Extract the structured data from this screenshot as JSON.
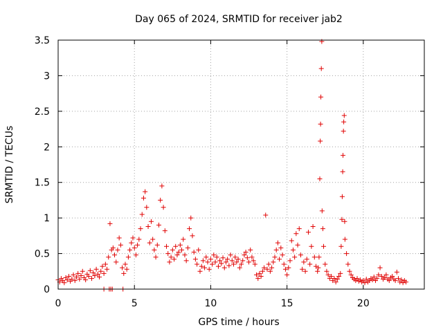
{
  "chart_data": {
    "type": "scatter",
    "title": "Day 065 of 2024, SRMTID for receiver jab2",
    "xlabel": "GPS time / hours",
    "ylabel": "SRMTID / TECUs",
    "xlim": [
      0,
      24
    ],
    "ylim": [
      0,
      3.5
    ],
    "xticks": [
      0,
      5,
      10,
      15,
      20
    ],
    "xtick_labels": [
      "0",
      "5",
      "10",
      "15",
      "20"
    ],
    "yticks": [
      0,
      0.5,
      1,
      1.5,
      2,
      2.5,
      3,
      3.5
    ],
    "ytick_labels": [
      "0",
      "0.5",
      "1",
      "1.5",
      "2",
      "2.5",
      "3",
      "3.5"
    ],
    "grid": true,
    "legend": "none",
    "marker": "+",
    "color": "#e00000",
    "series": [
      {
        "name": "SRMTID",
        "points": [
          [
            0.0,
            0.13
          ],
          [
            0.1,
            0.1
          ],
          [
            0.2,
            0.15
          ],
          [
            0.3,
            0.12
          ],
          [
            0.4,
            0.09
          ],
          [
            0.5,
            0.16
          ],
          [
            0.6,
            0.13
          ],
          [
            0.7,
            0.18
          ],
          [
            0.8,
            0.11
          ],
          [
            0.9,
            0.14
          ],
          [
            1.0,
            0.2
          ],
          [
            1.1,
            0.12
          ],
          [
            1.2,
            0.17
          ],
          [
            1.3,
            0.22
          ],
          [
            1.4,
            0.14
          ],
          [
            1.5,
            0.19
          ],
          [
            1.6,
            0.25
          ],
          [
            1.7,
            0.16
          ],
          [
            1.8,
            0.13
          ],
          [
            1.9,
            0.21
          ],
          [
            2.0,
            0.18
          ],
          [
            2.1,
            0.26
          ],
          [
            2.2,
            0.15
          ],
          [
            2.3,
            0.23
          ],
          [
            2.4,
            0.19
          ],
          [
            2.5,
            0.28
          ],
          [
            2.6,
            0.21
          ],
          [
            2.7,
            0.17
          ],
          [
            2.8,
            0.25
          ],
          [
            2.9,
            0.32
          ],
          [
            3.0,
            0.22
          ],
          [
            3.1,
            0.35
          ],
          [
            3.2,
            0.28
          ],
          [
            3.3,
            0.45
          ],
          [
            3.4,
            0.92
          ],
          [
            3.5,
            0.55
          ],
          [
            3.6,
            0.58
          ],
          [
            3.7,
            0.48
          ],
          [
            3.8,
            0.38
          ],
          [
            3.9,
            0.55
          ],
          [
            4.0,
            0.72
          ],
          [
            4.1,
            0.62
          ],
          [
            4.2,
            0.3
          ],
          [
            4.3,
            0.22
          ],
          [
            4.4,
            0.35
          ],
          [
            4.5,
            0.28
          ],
          [
            4.6,
            0.45
          ],
          [
            4.7,
            0.55
          ],
          [
            4.8,
            0.65
          ],
          [
            4.9,
            0.72
          ],
          [
            5.0,
            0.58
          ],
          [
            5.1,
            0.48
          ],
          [
            5.2,
            0.62
          ],
          [
            5.3,
            0.7
          ],
          [
            5.4,
            0.85
          ],
          [
            5.5,
            1.05
          ],
          [
            5.6,
            1.28
          ],
          [
            5.7,
            1.37
          ],
          [
            5.8,
            1.15
          ],
          [
            5.9,
            0.88
          ],
          [
            6.0,
            0.65
          ],
          [
            6.1,
            0.95
          ],
          [
            6.2,
            0.7
          ],
          [
            6.3,
            0.55
          ],
          [
            6.4,
            0.45
          ],
          [
            6.5,
            0.62
          ],
          [
            6.6,
            0.9
          ],
          [
            6.7,
            1.25
          ],
          [
            6.8,
            1.45
          ],
          [
            6.9,
            1.15
          ],
          [
            7.0,
            0.82
          ],
          [
            7.1,
            0.6
          ],
          [
            7.2,
            0.5
          ],
          [
            7.3,
            0.38
          ],
          [
            7.4,
            0.45
          ],
          [
            7.5,
            0.55
          ],
          [
            7.6,
            0.42
          ],
          [
            7.7,
            0.6
          ],
          [
            7.8,
            0.48
          ],
          [
            7.9,
            0.52
          ],
          [
            8.0,
            0.62
          ],
          [
            8.1,
            0.55
          ],
          [
            8.2,
            0.7
          ],
          [
            8.3,
            0.48
          ],
          [
            8.4,
            0.4
          ],
          [
            8.5,
            0.58
          ],
          [
            8.6,
            0.85
          ],
          [
            8.7,
            1.0
          ],
          [
            8.8,
            0.75
          ],
          [
            8.9,
            0.52
          ],
          [
            9.0,
            0.42
          ],
          [
            9.1,
            0.35
          ],
          [
            9.2,
            0.55
          ],
          [
            9.3,
            0.25
          ],
          [
            9.4,
            0.32
          ],
          [
            9.5,
            0.4
          ],
          [
            9.6,
            0.3
          ],
          [
            9.7,
            0.45
          ],
          [
            9.8,
            0.38
          ],
          [
            9.9,
            0.28
          ],
          [
            10.0,
            0.42
          ],
          [
            10.1,
            0.35
          ],
          [
            10.2,
            0.48
          ],
          [
            10.3,
            0.38
          ],
          [
            10.4,
            0.45
          ],
          [
            10.5,
            0.32
          ],
          [
            10.6,
            0.4
          ],
          [
            10.7,
            0.36
          ],
          [
            10.8,
            0.44
          ],
          [
            10.9,
            0.3
          ],
          [
            11.0,
            0.38
          ],
          [
            11.1,
            0.42
          ],
          [
            11.2,
            0.33
          ],
          [
            11.3,
            0.48
          ],
          [
            11.4,
            0.4
          ],
          [
            11.5,
            0.35
          ],
          [
            11.6,
            0.45
          ],
          [
            11.7,
            0.38
          ],
          [
            11.8,
            0.42
          ],
          [
            11.9,
            0.3
          ],
          [
            12.0,
            0.35
          ],
          [
            12.1,
            0.4
          ],
          [
            12.2,
            0.48
          ],
          [
            12.3,
            0.52
          ],
          [
            12.4,
            0.44
          ],
          [
            12.5,
            0.38
          ],
          [
            12.6,
            0.55
          ],
          [
            12.7,
            0.45
          ],
          [
            12.8,
            0.4
          ],
          [
            12.9,
            0.35
          ],
          [
            13.0,
            0.2
          ],
          [
            13.1,
            0.15
          ],
          [
            13.2,
            0.22
          ],
          [
            13.3,
            0.18
          ],
          [
            13.4,
            0.25
          ],
          [
            13.5,
            0.3
          ],
          [
            13.6,
            1.04
          ],
          [
            13.7,
            0.28
          ],
          [
            13.8,
            0.35
          ],
          [
            13.9,
            0.25
          ],
          [
            14.0,
            0.3
          ],
          [
            14.1,
            0.38
          ],
          [
            14.2,
            0.45
          ],
          [
            14.3,
            0.55
          ],
          [
            14.4,
            0.65
          ],
          [
            14.5,
            0.42
          ],
          [
            14.6,
            0.58
          ],
          [
            14.7,
            0.48
          ],
          [
            14.8,
            0.35
          ],
          [
            14.9,
            0.28
          ],
          [
            15.0,
            0.2
          ],
          [
            15.1,
            0.3
          ],
          [
            15.2,
            0.4
          ],
          [
            15.3,
            0.68
          ],
          [
            15.4,
            0.55
          ],
          [
            15.5,
            0.45
          ],
          [
            15.6,
            0.78
          ],
          [
            15.7,
            0.62
          ],
          [
            15.8,
            0.85
          ],
          [
            15.9,
            0.48
          ],
          [
            16.0,
            0.28
          ],
          [
            16.1,
            0.38
          ],
          [
            16.2,
            0.25
          ],
          [
            16.3,
            0.42
          ],
          [
            16.4,
            0.8
          ],
          [
            16.5,
            0.35
          ],
          [
            16.6,
            0.6
          ],
          [
            16.7,
            0.88
          ],
          [
            16.8,
            0.45
          ],
          [
            16.9,
            0.32
          ],
          [
            17.0,
            0.25
          ],
          [
            17.05,
            0.3
          ],
          [
            17.1,
            0.45
          ],
          [
            17.15,
            1.55
          ],
          [
            17.18,
            2.08
          ],
          [
            17.2,
            2.32
          ],
          [
            17.22,
            2.7
          ],
          [
            17.25,
            3.1
          ],
          [
            17.28,
            3.48
          ],
          [
            17.3,
            1.1
          ],
          [
            17.35,
            0.85
          ],
          [
            17.4,
            0.6
          ],
          [
            17.5,
            0.35
          ],
          [
            17.6,
            0.25
          ],
          [
            17.7,
            0.2
          ],
          [
            17.8,
            0.15
          ],
          [
            17.9,
            0.18
          ],
          [
            18.0,
            0.12
          ],
          [
            18.1,
            0.15
          ],
          [
            18.2,
            0.1
          ],
          [
            18.3,
            0.14
          ],
          [
            18.4,
            0.18
          ],
          [
            18.5,
            0.22
          ],
          [
            18.55,
            0.6
          ],
          [
            18.6,
            0.98
          ],
          [
            18.62,
            1.3
          ],
          [
            18.65,
            1.65
          ],
          [
            18.67,
            1.88
          ],
          [
            18.7,
            2.22
          ],
          [
            18.72,
            2.35
          ],
          [
            18.75,
            2.44
          ],
          [
            18.78,
            0.95
          ],
          [
            18.8,
            0.7
          ],
          [
            18.9,
            0.5
          ],
          [
            19.0,
            0.35
          ],
          [
            19.1,
            0.25
          ],
          [
            19.2,
            0.2
          ],
          [
            19.3,
            0.16
          ],
          [
            19.4,
            0.14
          ],
          [
            19.5,
            0.12
          ],
          [
            19.6,
            0.15
          ],
          [
            19.7,
            0.11
          ],
          [
            19.8,
            0.13
          ],
          [
            19.9,
            0.1
          ],
          [
            20.0,
            0.12
          ],
          [
            20.1,
            0.09
          ],
          [
            20.2,
            0.14
          ],
          [
            20.3,
            0.1
          ],
          [
            20.4,
            0.12
          ],
          [
            20.5,
            0.15
          ],
          [
            20.6,
            0.13
          ],
          [
            20.7,
            0.17
          ],
          [
            20.8,
            0.12
          ],
          [
            20.9,
            0.15
          ],
          [
            21.0,
            0.2
          ],
          [
            21.1,
            0.3
          ],
          [
            21.2,
            0.18
          ],
          [
            21.3,
            0.14
          ],
          [
            21.4,
            0.16
          ],
          [
            21.5,
            0.2
          ],
          [
            21.6,
            0.14
          ],
          [
            21.7,
            0.12
          ],
          [
            21.8,
            0.16
          ],
          [
            21.9,
            0.18
          ],
          [
            22.0,
            0.14
          ],
          [
            22.1,
            0.12
          ],
          [
            22.2,
            0.24
          ],
          [
            22.3,
            0.15
          ],
          [
            22.4,
            0.1
          ],
          [
            22.5,
            0.13
          ],
          [
            22.6,
            0.09
          ],
          [
            22.7,
            0.12
          ],
          [
            22.8,
            0.1
          ],
          [
            3.0,
            0.0
          ],
          [
            3.35,
            0.0
          ],
          [
            3.45,
            0.0
          ],
          [
            3.55,
            0.0
          ],
          [
            4.25,
            0.0
          ]
        ]
      }
    ]
  }
}
